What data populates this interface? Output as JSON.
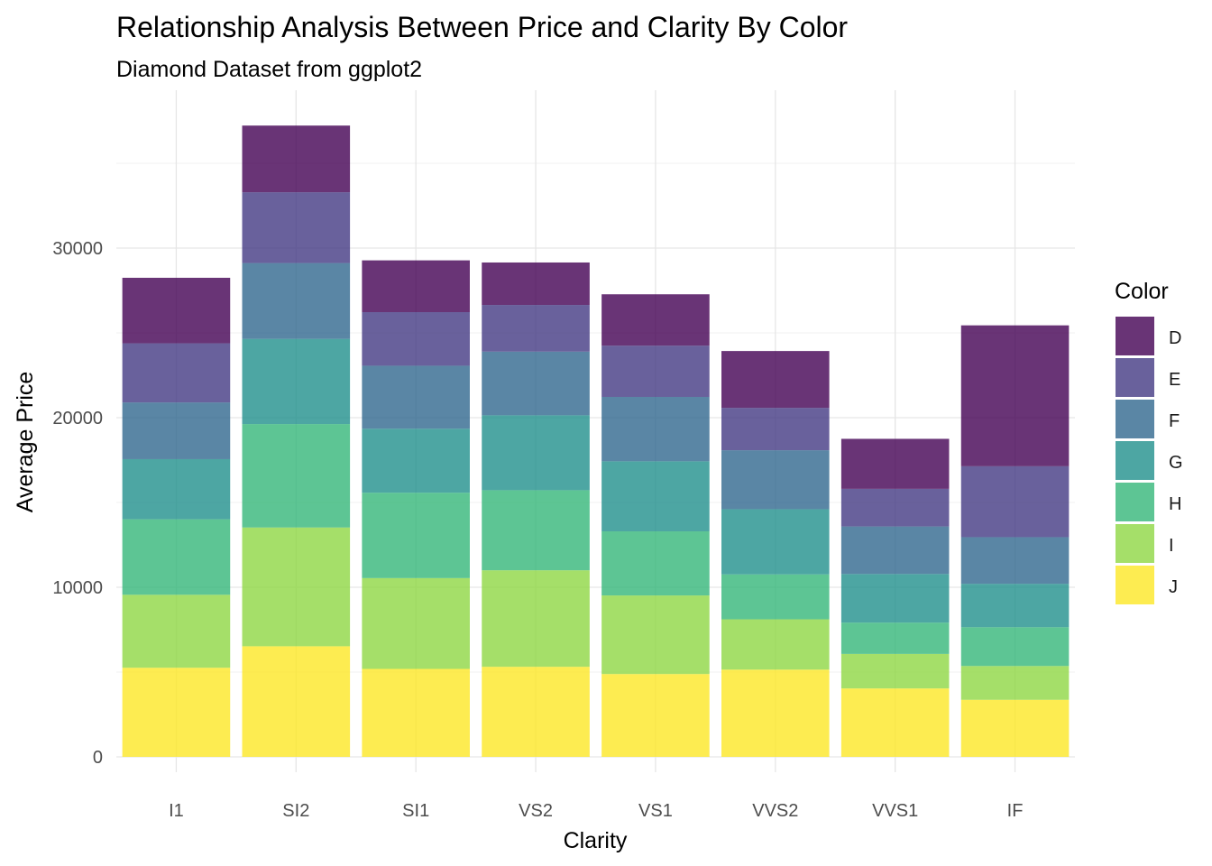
{
  "chart_data": {
    "type": "bar",
    "stacked": true,
    "title": "Relationship Analysis Between Price and Clarity By Color",
    "subtitle": "Diamond Dataset from ggplot2",
    "xlabel": "Clarity",
    "ylabel": "Average Price",
    "categories": [
      "I1",
      "SI2",
      "SI1",
      "VS2",
      "VS1",
      "VVS2",
      "VVS1",
      "IF"
    ],
    "ylim": [
      0,
      37180
    ],
    "yticks": [
      0,
      10000,
      20000,
      30000
    ],
    "ytick_labels": [
      "0",
      "10000",
      "20000",
      "30000"
    ],
    "grid": true,
    "legend_title": "Color",
    "legend_position": "right",
    "stack_order_bottom_to_top": [
      "J",
      "I",
      "H",
      "G",
      "F",
      "E",
      "D"
    ],
    "series": [
      {
        "name": "D",
        "color": "#440154",
        "values": [
          3863,
          3931,
          3053,
          2504,
          3030,
          3351,
          2948,
          8307
        ]
      },
      {
        "name": "E",
        "color": "#443A83",
        "values": [
          3488,
          4174,
          3161,
          2751,
          3021,
          2500,
          2220,
          4182
        ]
      },
      {
        "name": "F",
        "color": "#31688E",
        "values": [
          3342,
          4472,
          3714,
          3756,
          3796,
          3475,
          2804,
          2750
        ]
      },
      {
        "name": "G",
        "color": "#21908C",
        "values": [
          3545,
          5022,
          3775,
          4416,
          4131,
          3845,
          2866,
          2558
        ]
      },
      {
        "name": "H",
        "color": "#35B779",
        "values": [
          4453,
          6100,
          5032,
          4722,
          3780,
          2649,
          1845,
          2288
        ]
      },
      {
        "name": "I",
        "color": "#8FD744",
        "values": [
          4302,
          7003,
          5355,
          5690,
          4633,
          2968,
          2035,
          1994
        ]
      },
      {
        "name": "J",
        "color": "#FDE725",
        "values": [
          5255,
          6521,
          5186,
          5311,
          4884,
          5142,
          4034,
          3364
        ]
      }
    ]
  }
}
